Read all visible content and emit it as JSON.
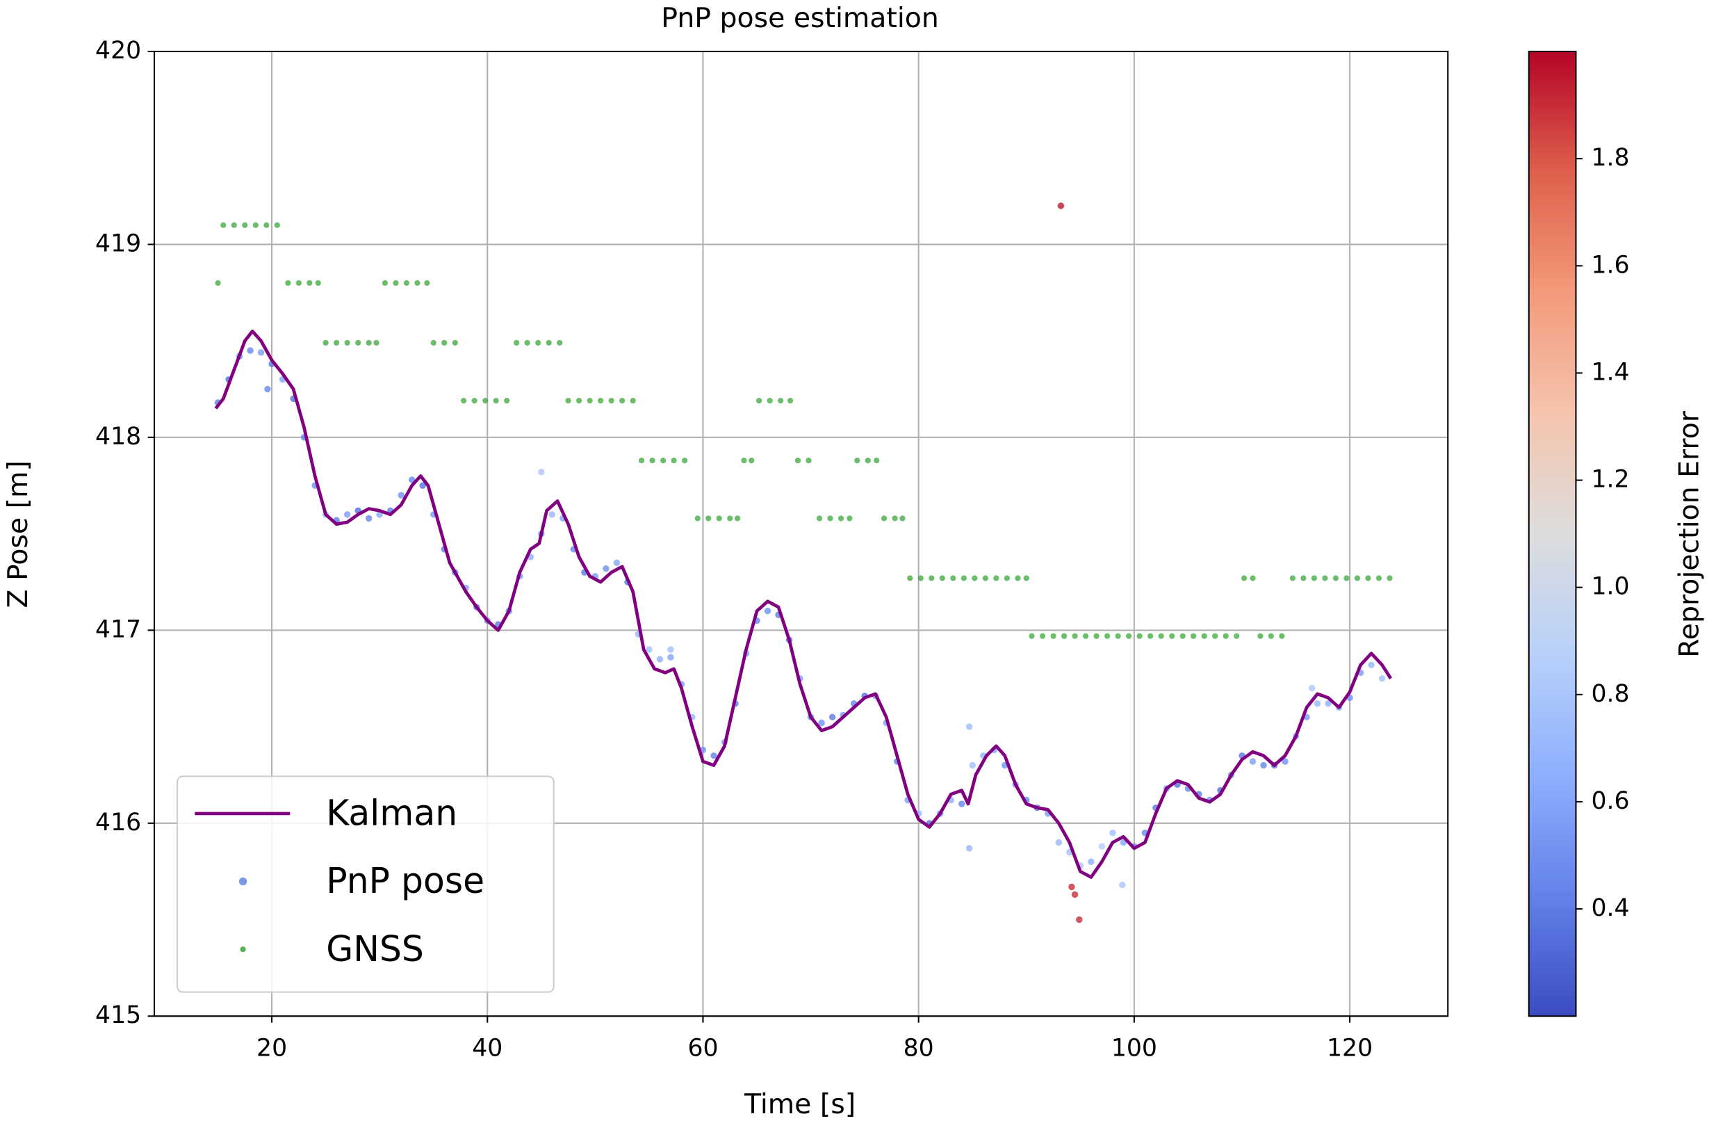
{
  "chart_data": {
    "type": "line",
    "title": "PnP pose estimation",
    "x_label": "Time [s]",
    "y_label": "Z Pose [m]",
    "xlim": [
      9.1,
      129.1
    ],
    "ylim": [
      415,
      420
    ],
    "xticks": [
      20,
      40,
      60,
      80,
      100,
      120
    ],
    "yticks": [
      415,
      416,
      417,
      418,
      419,
      420
    ],
    "grid": true,
    "legend": "lower left",
    "colormap": "coolwarm",
    "clim": [
      0.2,
      2.0
    ],
    "colorbar_label": "Reprojection Error",
    "colorbar_ticks": [
      0.4,
      0.6,
      0.8,
      {
        "value": 1,
        "label": "1.0"
      },
      1.2,
      1.4,
      1.6,
      1.8
    ],
    "series": [
      {
        "name": "Kalman",
        "type": "line",
        "color": "#800080",
        "x": [
          14.8,
          15.5,
          16.5,
          17.5,
          18.2,
          19,
          20,
          21,
          22,
          23,
          24,
          25,
          26,
          27,
          28,
          29,
          30,
          31,
          32,
          33,
          33.8,
          34.5,
          35.5,
          36.5,
          38,
          39,
          40,
          41,
          42,
          43,
          44,
          44.8,
          45.5,
          46.5,
          47.5,
          48.5,
          49.5,
          50.5,
          51.5,
          52.5,
          53.5,
          54.5,
          55.5,
          56.5,
          57.3,
          58,
          59,
          60,
          61,
          62,
          63,
          64,
          65,
          66,
          67,
          68,
          69,
          70,
          71,
          72,
          73,
          74,
          75,
          76,
          77,
          78,
          79,
          80,
          81,
          82,
          83,
          84,
          84.6,
          85.3,
          86.3,
          87.2,
          88,
          89,
          90,
          91,
          92,
          93,
          94,
          95,
          96,
          97,
          98,
          99,
          100,
          101,
          102,
          103,
          104,
          105,
          106,
          107,
          108,
          109,
          110,
          111,
          112,
          113,
          114,
          115,
          116,
          117,
          118,
          119,
          120,
          121,
          122,
          123,
          123.8
        ],
        "y": [
          418.15,
          418.2,
          418.35,
          418.5,
          418.55,
          418.5,
          418.4,
          418.33,
          418.25,
          418.05,
          417.8,
          417.6,
          417.55,
          417.56,
          417.6,
          417.63,
          417.62,
          417.6,
          417.65,
          417.75,
          417.8,
          417.75,
          417.55,
          417.35,
          417.2,
          417.12,
          417.05,
          417.0,
          417.1,
          417.3,
          417.42,
          417.45,
          417.62,
          417.67,
          417.55,
          417.38,
          417.28,
          417.25,
          417.3,
          417.33,
          417.2,
          416.9,
          416.8,
          416.78,
          416.8,
          416.7,
          416.5,
          416.32,
          416.3,
          416.4,
          416.65,
          416.9,
          417.1,
          417.15,
          417.12,
          416.95,
          416.72,
          416.55,
          416.48,
          416.5,
          416.55,
          416.6,
          416.65,
          416.67,
          416.55,
          416.35,
          416.15,
          416.02,
          415.98,
          416.05,
          416.15,
          416.17,
          416.1,
          416.25,
          416.35,
          416.4,
          416.35,
          416.2,
          416.1,
          416.08,
          416.07,
          416.0,
          415.9,
          415.75,
          415.72,
          415.8,
          415.9,
          415.93,
          415.87,
          415.9,
          416.05,
          416.18,
          416.22,
          416.2,
          416.13,
          416.11,
          416.15,
          416.25,
          416.33,
          416.37,
          416.35,
          416.3,
          416.35,
          416.45,
          416.6,
          416.67,
          416.65,
          416.6,
          416.68,
          416.82,
          416.88,
          416.82,
          416.75
        ]
      },
      {
        "name": "PnP pose",
        "type": "colorscatter",
        "color": "#5a7ee0",
        "x": [
          15,
          16,
          17,
          18,
          19,
          20,
          21,
          22,
          23,
          24,
          25,
          26,
          27,
          28,
          29,
          30,
          31,
          32,
          33,
          34,
          35,
          36,
          37,
          38,
          39,
          40,
          41,
          42,
          43,
          44,
          45,
          46,
          47,
          48,
          49,
          50,
          51,
          52,
          53,
          54,
          55,
          56,
          57,
          58,
          59,
          60,
          61,
          62,
          63,
          64,
          65,
          66,
          67,
          68,
          69,
          70,
          71,
          72,
          73,
          74,
          75,
          76,
          77,
          78,
          79,
          80,
          81,
          82,
          83,
          84,
          85,
          86,
          87,
          88,
          89,
          90,
          91,
          92,
          93,
          94,
          95,
          96,
          97,
          98,
          99,
          100,
          101,
          102,
          103,
          104,
          105,
          106,
          107,
          108,
          109,
          110,
          111,
          112,
          113,
          114,
          115,
          116,
          117,
          118,
          119,
          120,
          121,
          122,
          123,
          45,
          84.7,
          84.7,
          98.9,
          19.6,
          93.2,
          94.2,
          94.5,
          94.9,
          116.5,
          57
        ],
        "y": [
          418.18,
          418.3,
          418.42,
          418.45,
          418.44,
          418.38,
          418.3,
          418.2,
          418.0,
          417.75,
          417.6,
          417.57,
          417.6,
          417.62,
          417.58,
          417.6,
          417.62,
          417.7,
          417.78,
          417.75,
          417.6,
          417.42,
          417.3,
          417.22,
          417.12,
          417.05,
          417.03,
          417.1,
          417.28,
          417.38,
          417.5,
          417.6,
          417.58,
          417.42,
          417.3,
          417.28,
          417.32,
          417.35,
          417.25,
          416.98,
          416.9,
          416.85,
          416.86,
          416.72,
          416.55,
          416.38,
          416.35,
          416.42,
          416.62,
          416.88,
          417.05,
          417.1,
          417.08,
          416.95,
          416.75,
          416.55,
          416.52,
          416.55,
          416.56,
          416.62,
          416.66,
          416.66,
          416.52,
          416.32,
          416.12,
          416.05,
          416.0,
          416.05,
          416.12,
          416.1,
          416.3,
          416.35,
          416.38,
          416.3,
          416.2,
          416.12,
          416.08,
          416.05,
          415.9,
          415.85,
          415.78,
          415.8,
          415.88,
          415.95,
          415.9,
          415.88,
          415.95,
          416.08,
          416.18,
          416.2,
          416.18,
          416.15,
          416.12,
          416.17,
          416.25,
          416.35,
          416.32,
          416.3,
          416.3,
          416.32,
          416.45,
          416.55,
          416.62,
          416.62,
          416.6,
          416.65,
          416.78,
          416.82,
          416.75,
          417.82,
          416.5,
          415.87,
          415.68,
          418.25,
          419.2,
          415.67,
          415.63,
          415.5,
          416.7,
          416.9
        ],
        "error": [
          0.4,
          0.35,
          0.5,
          0.45,
          0.55,
          0.4,
          0.6,
          0.35,
          0.45,
          0.5,
          0.7,
          0.4,
          0.55,
          0.35,
          0.45,
          0.6,
          0.4,
          0.5,
          0.45,
          0.35,
          0.55,
          0.4,
          0.45,
          0.6,
          0.35,
          0.5,
          0.4,
          0.45,
          0.55,
          0.65,
          0.5,
          0.7,
          0.6,
          0.45,
          0.4,
          0.55,
          0.5,
          0.6,
          0.4,
          0.7,
          0.75,
          0.65,
          0.6,
          0.55,
          0.7,
          0.5,
          0.45,
          0.6,
          0.4,
          0.55,
          0.45,
          0.5,
          0.4,
          0.35,
          0.6,
          0.45,
          0.5,
          0.4,
          0.55,
          0.45,
          0.35,
          0.5,
          0.6,
          0.45,
          0.55,
          0.7,
          0.4,
          0.5,
          0.65,
          0.45,
          0.75,
          0.7,
          0.6,
          0.5,
          0.55,
          0.45,
          0.4,
          0.55,
          0.7,
          0.75,
          0.8,
          0.65,
          0.85,
          0.75,
          0.6,
          0.5,
          0.45,
          0.4,
          0.55,
          0.35,
          0.45,
          0.4,
          0.5,
          0.35,
          0.45,
          0.4,
          0.55,
          0.45,
          0.35,
          0.5,
          0.6,
          0.55,
          0.7,
          0.65,
          0.6,
          0.5,
          0.55,
          0.7,
          0.75,
          0.8,
          0.75,
          0.7,
          0.8,
          0.45,
          1.95,
          1.9,
          1.9,
          1.9,
          0.8,
          0.75
        ]
      },
      {
        "name": "GNSS",
        "type": "scatter",
        "color": "#2ca02c",
        "x": [
          15,
          15.5,
          16.5,
          17.5,
          18.5,
          19.5,
          20.5,
          21.5,
          22.5,
          23.5,
          24.3,
          25,
          26,
          27,
          28,
          29,
          29.7,
          30.5,
          31.5,
          32.5,
          33.5,
          34.4,
          35,
          36,
          37,
          37.8,
          38.8,
          39.8,
          40.8,
          41.8,
          42.7,
          43.7,
          44.7,
          45.7,
          46.7,
          47.5,
          48.5,
          49.5,
          50.5,
          51.5,
          52.5,
          53.5,
          54.3,
          55.3,
          56.3,
          57.3,
          58.3,
          59.5,
          60.5,
          61.5,
          62.5,
          63.2,
          63.8,
          64.5,
          65.2,
          66.2,
          67.2,
          68.1,
          68.8,
          69.8,
          70.8,
          71.8,
          72.8,
          73.6,
          74.3,
          75.3,
          76.1,
          76.8,
          77.8,
          78.5,
          79.2,
          80.2,
          81.2,
          82.2,
          83.2,
          84.2,
          85.2,
          86.2,
          87.2,
          88.2,
          89.2,
          90.0,
          90.5,
          91.5,
          92.5,
          93.5,
          94.5,
          95.5,
          96.5,
          97.5,
          98.5,
          99.5,
          100.5,
          101.5,
          102.5,
          103.5,
          104.5,
          105.5,
          106.5,
          107.5,
          108.5,
          109.5,
          110.2,
          111,
          111.7,
          112.7,
          113.7,
          114.7,
          115.7,
          116.7,
          117.7,
          118.7,
          119.7,
          120.7,
          121.7,
          122.7,
          123.7
        ],
        "y": [
          418.8,
          419.1,
          419.1,
          419.1,
          419.1,
          419.1,
          419.1,
          418.8,
          418.8,
          418.8,
          418.8,
          418.49,
          418.49,
          418.49,
          418.49,
          418.49,
          418.49,
          418.8,
          418.8,
          418.8,
          418.8,
          418.8,
          418.49,
          418.49,
          418.49,
          418.19,
          418.19,
          418.19,
          418.19,
          418.19,
          418.49,
          418.49,
          418.49,
          418.49,
          418.49,
          418.19,
          418.19,
          418.19,
          418.19,
          418.19,
          418.19,
          418.19,
          417.88,
          417.88,
          417.88,
          417.88,
          417.88,
          417.58,
          417.58,
          417.58,
          417.58,
          417.58,
          417.88,
          417.88,
          418.19,
          418.19,
          418.19,
          418.19,
          417.88,
          417.88,
          417.58,
          417.58,
          417.58,
          417.58,
          417.88,
          417.88,
          417.88,
          417.58,
          417.58,
          417.58,
          417.27,
          417.27,
          417.27,
          417.27,
          417.27,
          417.27,
          417.27,
          417.27,
          417.27,
          417.27,
          417.27,
          417.27,
          416.97,
          416.97,
          416.97,
          416.97,
          416.97,
          416.97,
          416.97,
          416.97,
          416.97,
          416.97,
          416.97,
          416.97,
          416.97,
          416.97,
          416.97,
          416.97,
          416.97,
          416.97,
          416.97,
          416.97,
          417.27,
          417.27,
          416.97,
          416.97,
          416.97,
          417.27,
          417.27,
          417.27,
          417.27,
          417.27,
          417.27,
          417.27,
          417.27,
          417.27,
          417.27
        ]
      }
    ]
  }
}
